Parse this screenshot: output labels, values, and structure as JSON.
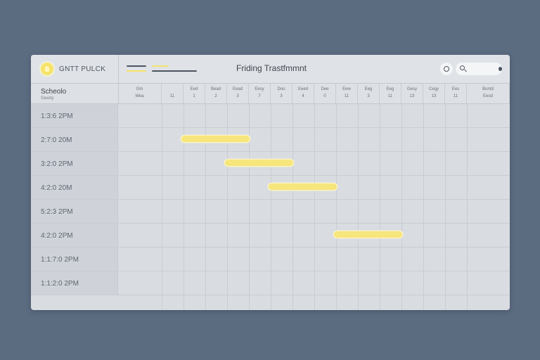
{
  "app": {
    "name": "GNTT PULCK",
    "title": "Friding Trastfmmnt"
  },
  "search": {
    "placeholder": ""
  },
  "schedule": {
    "label": "Scheolo",
    "sublabel": "Savety"
  },
  "columns": [
    {
      "day": "Gm",
      "num": "Wea"
    },
    {
      "day": "",
      "num": "11"
    },
    {
      "day": "Eed",
      "num": "1"
    },
    {
      "day": "Bead",
      "num": "2"
    },
    {
      "day": "Eead",
      "num": "3"
    },
    {
      "day": "Eesy",
      "num": "7"
    },
    {
      "day": "Doo",
      "num": "3"
    },
    {
      "day": "Eeed",
      "num": "4"
    },
    {
      "day": "Dee",
      "num": "0"
    },
    {
      "day": "Eew",
      "num": "11"
    },
    {
      "day": "Eeg",
      "num": "3"
    },
    {
      "day": "Eeg",
      "num": "11"
    },
    {
      "day": "Gesy",
      "num": "13"
    },
    {
      "day": "Cegy",
      "num": "13"
    },
    {
      "day": "Ees",
      "num": "11"
    },
    {
      "day": "Buntd",
      "num": "Eeod"
    }
  ],
  "rows": [
    {
      "time": "1:3:6 2PM"
    },
    {
      "time": "2:7:0 20M"
    },
    {
      "time": "3:2:0 2PM"
    },
    {
      "time": "4:2:0 20M"
    },
    {
      "time": "5:2:3 2PM"
    },
    {
      "time": "4:2:0 2PM"
    },
    {
      "time": "1:1:7:0 2PM"
    },
    {
      "time": "1:1:2:0 2PM"
    }
  ],
  "tasks": [
    {
      "row": 1,
      "start_col": 3,
      "end_col": 6
    },
    {
      "row": 2,
      "start_col": 5,
      "end_col": 8
    },
    {
      "row": 3,
      "start_col": 7,
      "end_col": 10
    },
    {
      "row": 5,
      "start_col": 10,
      "end_col": 13
    }
  ],
  "colors": {
    "accent": "#f6e67b",
    "background": "#5b6b80",
    "panel": "#d9dce1"
  },
  "icons": [
    "lightbulb-icon",
    "menu-icon",
    "refresh-icon",
    "search-icon"
  ]
}
